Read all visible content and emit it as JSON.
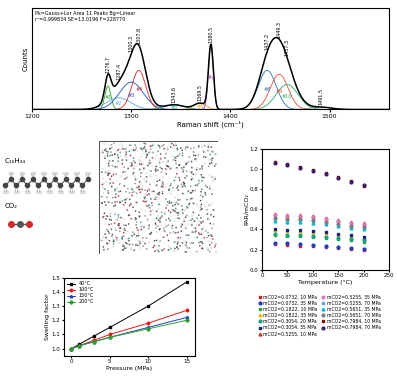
{
  "chart_data": [
    {
      "type": "line",
      "xlabel": "Raman shift (cm⁻¹)",
      "ylabel": "Counts",
      "annotation": "Pk=Gauss+Lor Area 11 Peaks Bg=Linear\nr²=0.999834 SE=13.0196 F=228770",
      "xlim": [
        1200,
        1560
      ],
      "ylim": [
        0,
        1.3
      ],
      "xticks": [
        1200,
        1300,
        1400,
        1500
      ],
      "tick_labels": "x",
      "color": "#000000",
      "peaks": [
        {
          "center": 1276.7,
          "height": 0.3,
          "width": 3,
          "name": "#1",
          "color": "#2ca02c"
        },
        {
          "center": 1287.4,
          "height": 0.15,
          "width": 12,
          "name": "#2",
          "color": "#5fa8d3"
        },
        {
          "center": 1300.3,
          "height": 0.35,
          "width": 12,
          "name": "#3",
          "color": "#1f4fbf"
        },
        {
          "center": 1307.8,
          "height": 0.5,
          "width": 7,
          "name": "#4",
          "color": "#d62728"
        },
        {
          "center": 1343.6,
          "height": 0.06,
          "width": 10,
          "name": "#5",
          "color": "#17a589"
        },
        {
          "center": 1369.5,
          "height": 0.08,
          "width": 6,
          "name": "#6",
          "color": "#ff9f1c"
        },
        {
          "center": 1380.5,
          "height": 0.82,
          "width": 2.5,
          "name": "#7",
          "color": "#8e44ad"
        },
        {
          "center": 1437.2,
          "height": 0.5,
          "width": 9,
          "name": "#8",
          "color": "#1f77b4"
        },
        {
          "center": 1449.3,
          "height": 0.45,
          "width": 9,
          "name": "#9",
          "color": "#e74c3c"
        },
        {
          "center": 1457.3,
          "height": 0.32,
          "width": 11,
          "name": "#10",
          "color": "#27ae60"
        },
        {
          "center": 1491.5,
          "height": 0.03,
          "width": 10,
          "color": "#7f7f7f"
        }
      ]
    },
    {
      "type": "line",
      "xlabel": "Pressure (MPa)",
      "ylabel": "Swelling factor",
      "xlim": [
        -1,
        16
      ],
      "ylim": [
        0.95,
        1.5
      ],
      "xticks": [
        0,
        5,
        10,
        15
      ],
      "yticks": [
        {
          "value": 1.0,
          "label": "1.0"
        },
        1.1,
        1.2,
        1.3,
        1.4,
        1.5
      ],
      "legend": "upper left",
      "x": [
        0,
        1,
        3,
        5,
        10,
        15
      ],
      "series": [
        {
          "name": "40°C",
          "color": "#000000",
          "marker": "square",
          "values": [
            1.0,
            1.03,
            1.09,
            1.15,
            1.3,
            1.47
          ]
        },
        {
          "name": "100°C",
          "color": "#e41a1c",
          "marker": "circle",
          "values": [
            1.0,
            1.02,
            1.06,
            1.1,
            1.18,
            1.27
          ]
        },
        {
          "name": "150°C",
          "color": "#1f3fbf",
          "marker": "triangle",
          "values": [
            1.0,
            1.02,
            1.05,
            1.08,
            1.15,
            1.22
          ]
        },
        {
          "name": "200°C",
          "color": "#2ca02c",
          "marker": "diamond",
          "values": [
            1.0,
            1.02,
            1.05,
            1.08,
            1.14,
            1.2
          ]
        }
      ]
    },
    {
      "type": "scatter",
      "xlabel": "Temperature (°C)",
      "ylabel": "PAR/mCO₂",
      "xlim": [
        0,
        250
      ],
      "ylim": [
        0,
        1.2
      ],
      "xticks": [
        0,
        50,
        100,
        150,
        200,
        250
      ],
      "yticks": [
        {
          "value": 0.0,
          "label": "0.0"
        },
        0.2,
        0.4,
        0.6,
        0.8,
        {
          "value": 1.0,
          "label": "1.0"
        },
        1.2
      ],
      "legend": "bottom",
      "x": [
        25,
        50,
        75,
        100,
        125,
        150,
        175,
        200
      ],
      "series": [
        {
          "name": "mCO2=0.0732, 10 MPa",
          "color": "#e41a1c",
          "marker": "square",
          "values": [
            0.26,
            0.25,
            0.24,
            0.235,
            0.23,
            0.22,
            0.21,
            0.2
          ]
        },
        {
          "name": "mCO2=0.0732, 35 MPa",
          "color": "#1f3fbf",
          "marker": "circle",
          "values": [
            0.27,
            0.265,
            0.26,
            0.25,
            0.24,
            0.23,
            0.22,
            0.21
          ]
        },
        {
          "name": "mCO2=0.1822, 10 MPa",
          "color": "#2ca02c",
          "marker": "square",
          "values": [
            0.34,
            0.335,
            0.33,
            0.32,
            0.31,
            0.3,
            0.29,
            0.28
          ]
        },
        {
          "name": "mCO2=0.1822, 35 MPa",
          "color": "#f0b400",
          "marker": "triangle",
          "values": [
            0.39,
            0.385,
            0.38,
            0.37,
            0.36,
            0.34,
            0.33,
            0.31
          ]
        },
        {
          "name": "mCO2=0.3054, 20 MPa",
          "color": "#17a589",
          "marker": "circle",
          "values": [
            0.35,
            0.345,
            0.34,
            0.33,
            0.32,
            0.31,
            0.3,
            0.29
          ]
        },
        {
          "name": "mCO2=0.3054, 35 MPa",
          "color": "#1a237e",
          "marker": "square",
          "values": [
            0.4,
            0.395,
            0.39,
            0.38,
            0.37,
            0.35,
            0.34,
            0.32
          ]
        },
        {
          "name": "mCO2=0.5255, 10 MPa",
          "color": "#c0392b",
          "marker": "triangle",
          "values": [
            0.55,
            0.545,
            0.54,
            0.53,
            0.51,
            0.49,
            0.47,
            0.46
          ]
        },
        {
          "name": "mCO2=0.5255, 35 MPa",
          "color": "#e377c2",
          "marker": "circle",
          "values": [
            0.54,
            0.535,
            0.53,
            0.52,
            0.5,
            0.48,
            0.46,
            0.45
          ]
        },
        {
          "name": "mCO2=0.5255, 70 MPa",
          "color": "#5fa8d3",
          "marker": "square",
          "values": [
            0.5,
            0.495,
            0.49,
            0.48,
            0.46,
            0.44,
            0.42,
            0.41
          ]
        },
        {
          "name": "mCO2=0.5651, 35 MPa",
          "color": "#00bcd4",
          "marker": "triangle",
          "values": [
            0.48,
            0.475,
            0.47,
            0.46,
            0.45,
            0.43,
            0.41,
            0.4
          ]
        },
        {
          "name": "mCO2=0.5651, 70 MPa",
          "color": "#7f7f7f",
          "marker": "circle",
          "values": [
            0.51,
            0.505,
            0.5,
            0.49,
            0.47,
            0.45,
            0.43,
            0.42
          ]
        },
        {
          "name": "mCO2=0.7984, 10 MPa",
          "color": "#8b0000",
          "marker": "square",
          "values": [
            1.07,
            1.05,
            1.02,
            0.99,
            0.96,
            0.92,
            0.88,
            0.83
          ]
        },
        {
          "name": "mCO2=0.7984, 70 MPa",
          "color": "#3b1f6b",
          "marker": "circle",
          "values": [
            1.06,
            1.04,
            1.01,
            0.98,
            0.95,
            0.91,
            0.87,
            0.84
          ]
        }
      ]
    }
  ],
  "molecules": [
    "C₁₆H₃₄",
    "CO₂"
  ]
}
